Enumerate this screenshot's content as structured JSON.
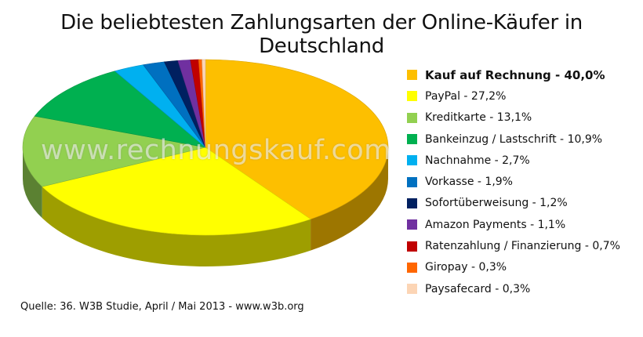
{
  "chart_data": {
    "type": "pie",
    "title": "Die beliebtesten Zahlungsarten der Online-Käufer in Deutschland",
    "watermark": "www.rechnungskauf.com",
    "source": "Quelle: 36. W3B Studie, April / Mai 2013 - www.w3b.org",
    "legend_position": "right",
    "slices": [
      {
        "label": "Kauf auf Rechnung - 40,0%",
        "value": 40.0,
        "color": "#FDBF00"
      },
      {
        "label": "PayPal - 27,2%",
        "value": 27.2,
        "color": "#FFFF00"
      },
      {
        "label": "Kreditkarte - 13,1%",
        "value": 13.1,
        "color": "#92D050"
      },
      {
        "label": "Bankeinzug / Lastschrift - 10,9%",
        "value": 10.9,
        "color": "#00B050"
      },
      {
        "label": "Nachnahme - 2,7%",
        "value": 2.7,
        "color": "#00B0F0"
      },
      {
        "label": "Vorkasse - 1,9%",
        "value": 1.9,
        "color": "#0070C0"
      },
      {
        "label": "Sofortüberweisung - 1,2%",
        "value": 1.2,
        "color": "#002060"
      },
      {
        "label": "Amazon Payments - 1,1%",
        "value": 1.1,
        "color": "#7030A0"
      },
      {
        "label": "Ratenzahlung / Finanzierung - 0,7%",
        "value": 0.7,
        "color": "#C00000"
      },
      {
        "label": "Giropay - 0,3%",
        "value": 0.3,
        "color": "#FF6600"
      },
      {
        "label": "Paysafecard - 0,3%",
        "value": 0.3,
        "color": "#FCD5B5"
      }
    ]
  }
}
